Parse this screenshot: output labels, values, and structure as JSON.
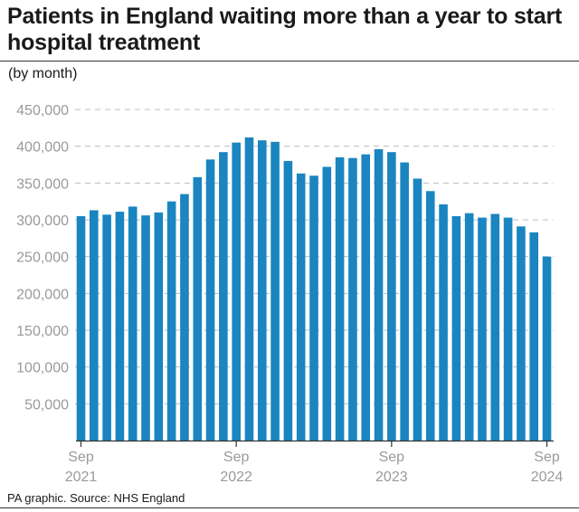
{
  "title": "Patients in England waiting more than a year to start hospital treatment",
  "subtitle": "(by month)",
  "source": "PA graphic. Source: NHS England",
  "colors": {
    "bar": "#1a85c0",
    "grid": "#bdbdbd",
    "axis": "#333333",
    "tick_text": "#9a9a9a"
  },
  "chart_data": {
    "type": "bar",
    "title": "Patients in England waiting more than a year to start hospital treatment",
    "subtitle": "(by month)",
    "xlabel": "",
    "ylabel": "",
    "ylim": [
      0,
      450000
    ],
    "yticks": [
      50000,
      100000,
      150000,
      200000,
      250000,
      300000,
      350000,
      400000,
      450000
    ],
    "ytick_labels": [
      "50,000",
      "100,000",
      "150,000",
      "200,000",
      "250,000",
      "300,000",
      "350,000",
      "400,000",
      "450,000"
    ],
    "grid": true,
    "categories": [
      "Sep 2021",
      "Oct 2021",
      "Nov 2021",
      "Dec 2021",
      "Jan 2022",
      "Feb 2022",
      "Mar 2022",
      "Apr 2022",
      "May 2022",
      "Jun 2022",
      "Jul 2022",
      "Aug 2022",
      "Sep 2022",
      "Oct 2022",
      "Nov 2022",
      "Dec 2022",
      "Jan 2023",
      "Feb 2023",
      "Mar 2023",
      "Apr 2023",
      "May 2023",
      "Jun 2023",
      "Jul 2023",
      "Aug 2023",
      "Sep 2023",
      "Oct 2023",
      "Nov 2023",
      "Dec 2023",
      "Jan 2024",
      "Feb 2024",
      "Mar 2024",
      "Apr 2024",
      "May 2024",
      "Jun 2024",
      "Jul 2024",
      "Aug 2024",
      "Sep 2024"
    ],
    "values": [
      305000,
      313000,
      307000,
      311000,
      318000,
      306000,
      310000,
      325000,
      335000,
      358000,
      382000,
      392000,
      405000,
      412000,
      408000,
      406000,
      380000,
      363000,
      360000,
      372000,
      385000,
      384000,
      389000,
      396000,
      392000,
      378000,
      356000,
      339000,
      321000,
      305000,
      309000,
      303000,
      308000,
      303000,
      291000,
      283000,
      250000
    ],
    "x_tick_labels": [
      {
        "index": 0,
        "month": "Sep",
        "year": "2021"
      },
      {
        "index": 12,
        "month": "Sep",
        "year": "2022"
      },
      {
        "index": 24,
        "month": "Sep",
        "year": "2023"
      },
      {
        "index": 36,
        "month": "Sep",
        "year": "2024"
      }
    ]
  }
}
